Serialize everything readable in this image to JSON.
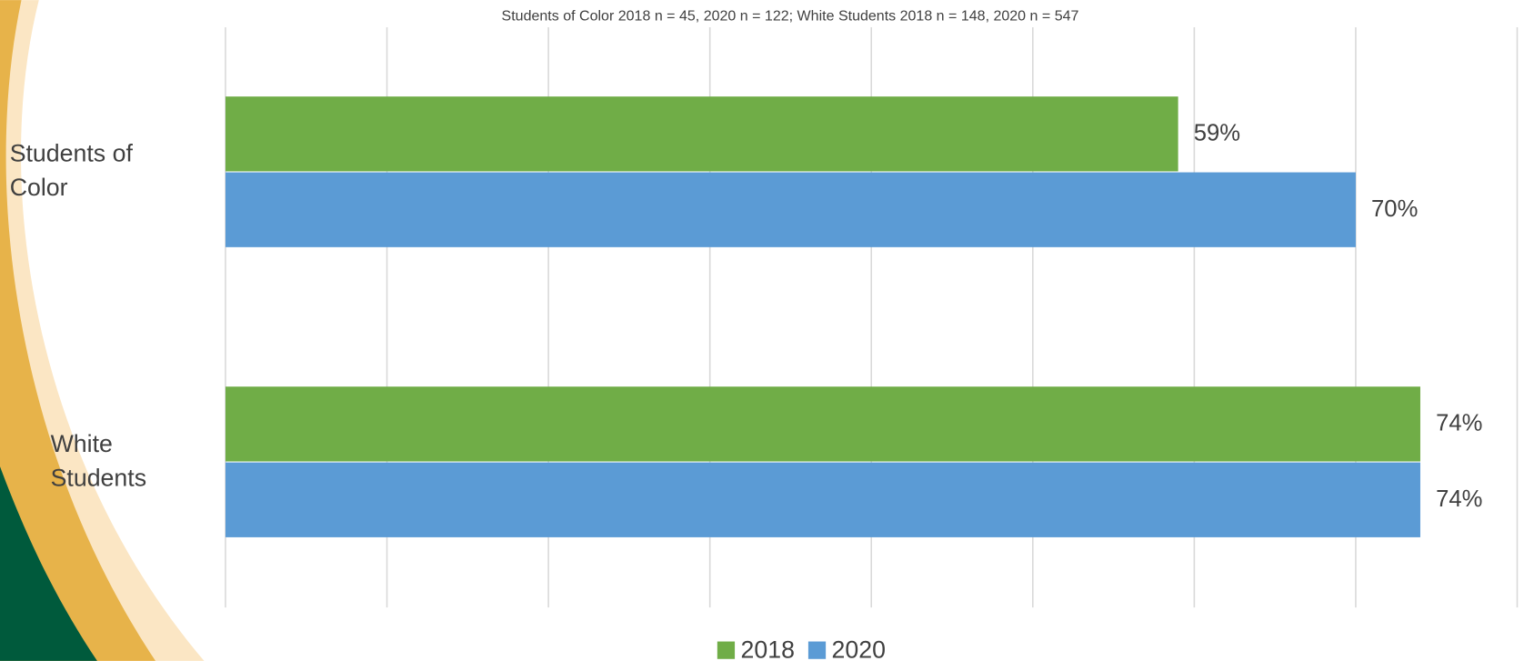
{
  "chart_data": {
    "type": "barh",
    "subtitle": "Students of Color 2018 n = 45, 2020 n = 122; White Students 2018 n = 148, 2020 n = 547",
    "categories": [
      "Students of Color",
      "White Students"
    ],
    "series": [
      {
        "name": "2018",
        "color": "#70ad47",
        "values": [
          59,
          74
        ],
        "value_labels": [
          "59%",
          "74%"
        ]
      },
      {
        "name": "2020",
        "color": "#5b9bd5",
        "values": [
          70,
          74
        ],
        "value_labels": [
          "70%",
          "74%"
        ]
      }
    ],
    "xlim": [
      0,
      80
    ],
    "xticks": [
      0,
      10,
      20,
      30,
      40,
      50,
      60,
      70,
      80
    ],
    "grid": true,
    "legend": "bottom"
  }
}
